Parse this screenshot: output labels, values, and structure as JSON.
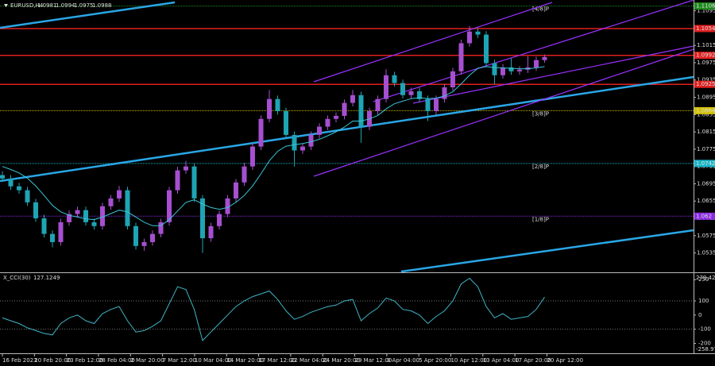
{
  "chart_data": [
    {
      "type": "candlestick",
      "title": "EURUSD,H4",
      "ohlc": [
        [
          1.0715,
          1.0724,
          1.0699,
          1.0707
        ],
        [
          1.0707,
          1.0715,
          1.0681,
          1.0689
        ],
        [
          1.0689,
          1.0697,
          1.0672,
          1.068
        ],
        [
          1.068,
          1.0688,
          1.0644,
          1.0652
        ],
        [
          1.0652,
          1.066,
          1.0607,
          1.0615
        ],
        [
          1.0615,
          1.0623,
          1.0571,
          1.0579
        ],
        [
          1.0579,
          1.0587,
          1.0548,
          1.056
        ],
        [
          1.056,
          1.0614,
          1.0552,
          1.0606
        ],
        [
          1.0606,
          1.0633,
          1.0598,
          1.0625
        ],
        [
          1.0625,
          1.0642,
          1.0617,
          1.0634
        ],
        [
          1.0634,
          1.0642,
          1.0598,
          1.0606
        ],
        [
          1.0606,
          1.0614,
          1.0589,
          1.0597
        ],
        [
          1.0597,
          1.0651,
          1.0589,
          1.0643
        ],
        [
          1.0643,
          1.0669,
          1.0635,
          1.0661
        ],
        [
          1.0661,
          1.069,
          1.0653,
          1.068
        ],
        [
          1.068,
          1.0688,
          1.0589,
          1.0597
        ],
        [
          1.0597,
          1.0605,
          1.0543,
          1.0551
        ],
        [
          1.0551,
          1.0568,
          1.054,
          1.056
        ],
        [
          1.056,
          1.0587,
          1.0552,
          1.0579
        ],
        [
          1.0579,
          1.0614,
          1.0571,
          1.0606
        ],
        [
          1.0606,
          1.0688,
          1.0598,
          1.068
        ],
        [
          1.068,
          1.0734,
          1.0672,
          1.0726
        ],
        [
          1.0726,
          1.0748,
          1.0718,
          1.0735
        ],
        [
          1.0735,
          1.0743,
          1.0653,
          1.0661
        ],
        [
          1.0661,
          1.0669,
          1.0535,
          1.0569
        ],
        [
          1.0569,
          1.0605,
          1.0561,
          1.0597
        ],
        [
          1.0597,
          1.0633,
          1.0589,
          1.0625
        ],
        [
          1.0625,
          1.0669,
          1.0617,
          1.0661
        ],
        [
          1.0661,
          1.0706,
          1.0653,
          1.0698
        ],
        [
          1.0698,
          1.0743,
          1.069,
          1.0735
        ],
        [
          1.0735,
          1.0789,
          1.0727,
          1.0781
        ],
        [
          1.0781,
          1.0853,
          1.0773,
          1.0845
        ],
        [
          1.0845,
          1.0912,
          1.0837,
          1.0891
        ],
        [
          1.0891,
          1.0899,
          1.0855,
          1.0863
        ],
        [
          1.0863,
          1.0871,
          1.08,
          1.0808
        ],
        [
          1.0808,
          1.0816,
          1.0735,
          1.0772
        ],
        [
          1.0772,
          1.0789,
          1.0764,
          1.0781
        ],
        [
          1.0781,
          1.0816,
          1.0773,
          1.0808
        ],
        [
          1.0808,
          1.0835,
          1.08,
          1.0827
        ],
        [
          1.0827,
          1.0853,
          1.0819,
          1.0845
        ],
        [
          1.0845,
          1.086,
          1.0837,
          1.0852
        ],
        [
          1.0852,
          1.089,
          1.0844,
          1.0882
        ],
        [
          1.0882,
          1.0912,
          1.0874,
          1.09
        ],
        [
          1.09,
          1.0908,
          1.079,
          1.0827
        ],
        [
          1.0827,
          1.0871,
          1.0819,
          1.0863
        ],
        [
          1.0863,
          1.0899,
          1.0855,
          1.0891
        ],
        [
          1.0891,
          1.096,
          1.0883,
          1.0946
        ],
        [
          1.0946,
          1.0954,
          1.092,
          1.0928
        ],
        [
          1.0928,
          1.0936,
          1.0892,
          1.09
        ],
        [
          1.09,
          1.0917,
          1.0892,
          1.0909
        ],
        [
          1.0909,
          1.0917,
          1.0883,
          1.0891
        ],
        [
          1.0891,
          1.0899,
          1.084,
          1.0863
        ],
        [
          1.0863,
          1.0899,
          1.0855,
          1.0891
        ],
        [
          1.0891,
          1.0926,
          1.0883,
          1.0918
        ],
        [
          1.0918,
          1.0963,
          1.091,
          1.0955
        ],
        [
          1.0955,
          1.1028,
          1.0947,
          1.102
        ],
        [
          1.102,
          1.106,
          1.1012,
          1.1047
        ],
        [
          1.1047,
          1.1055,
          1.1032,
          1.104
        ],
        [
          1.104,
          1.1048,
          1.0966,
          1.0974
        ],
        [
          1.0974,
          1.0982,
          1.0925,
          1.0946
        ],
        [
          1.0946,
          1.0972,
          1.0938,
          1.0964
        ],
        [
          1.0964,
          1.0985,
          1.0947,
          1.0955
        ],
        [
          1.0955,
          1.0967,
          1.0947,
          1.0959
        ],
        [
          1.0959,
          1.099,
          1.0951,
          1.0964
        ],
        [
          1.0964,
          1.0989,
          1.0956,
          1.0981
        ],
        [
          1.0981,
          1.0994,
          1.0975,
          1.0988
        ]
      ],
      "ma": [
        1.0735,
        1.0728,
        1.072,
        1.0708,
        1.069,
        1.0668,
        1.0645,
        1.063,
        1.0622,
        1.0618,
        1.0614,
        1.0612,
        1.0618,
        1.0626,
        1.0634,
        1.063,
        1.0618,
        1.0606,
        1.0598,
        1.0598,
        1.0612,
        1.0632,
        1.0652,
        1.0658,
        1.0648,
        1.064,
        1.0636,
        1.064,
        1.0652,
        1.0668,
        1.069,
        1.0718,
        1.0748,
        1.077,
        1.0782,
        1.0785,
        1.0788,
        1.0792,
        1.0798,
        1.0806,
        1.0815,
        1.0826,
        1.084,
        1.084,
        1.0845,
        1.0853,
        1.0868,
        1.088,
        1.0886,
        1.0892,
        1.0894,
        1.0892,
        1.0893,
        1.0898,
        1.0908,
        1.0926,
        1.0946,
        1.0962,
        1.0966,
        1.0964,
        1.0963,
        1.0962,
        1.0961,
        1.0961,
        1.0963,
        1.0966
      ],
      "colors": {
        "up": "#a64fd0",
        "down": "#1ea4b4",
        "ma": "#38c6d6"
      },
      "ylim": [
        1.0492,
        1.112
      ],
      "yticks": [
        1.1095,
        1.1055,
        1.1015,
        1.0975,
        1.0935,
        1.0895,
        1.0855,
        1.0815,
        1.0775,
        1.0735,
        1.0695,
        1.0655,
        1.0615,
        1.0575,
        1.0535
      ],
      "xticks": [
        {
          "value": 0,
          "label": "16 Feb 2023"
        },
        {
          "value": 3.84,
          "label": "20 Feb 20:00"
        },
        {
          "value": 7.68,
          "label": "23 Feb 12:00"
        },
        {
          "value": 11.52,
          "label": "28 Feb 04:00"
        },
        {
          "value": 15.36,
          "label": "2 Mar 20:00"
        },
        {
          "value": 19.2,
          "label": "7 Mar 12:00"
        },
        {
          "value": 23.04,
          "label": "10 Mar 04:00"
        },
        {
          "value": 26.88,
          "label": "14 Mar 20:00"
        },
        {
          "value": 30.72,
          "label": "17 Mar 12:00"
        },
        {
          "value": 34.56,
          "label": "22 Mar 04:00"
        },
        {
          "value": 38.4,
          "label": "24 Mar 20:00"
        },
        {
          "value": 42.24,
          "label": "29 Mar 12:00"
        },
        {
          "value": 46.08,
          "label": "3 Apr 04:00"
        },
        {
          "value": 49.92,
          "label": "5 Apr 20:00"
        },
        {
          "value": 53.76,
          "label": "10 Apr 12:00"
        },
        {
          "value": 57.6,
          "label": "13 Apr 04:00"
        },
        {
          "value": 61.44,
          "label": "17 Apr 20:00"
        },
        {
          "value": 65.28,
          "label": "20 Apr 12:00"
        }
      ],
      "levels": [
        {
          "price": 1.1106,
          "color": "#1f8a1f",
          "label": "[4/8]P"
        },
        {
          "price": 1.1054,
          "color": "#e02020"
        },
        {
          "price": 1.0992,
          "color": "#e02020"
        },
        {
          "price": 1.0925,
          "color": "#e02020"
        },
        {
          "price": 1.0864,
          "color": "#d2c000",
          "label": "[3/8]P"
        },
        {
          "price": 1.0742,
          "color": "#16b6c8",
          "label": "[2/8]P"
        },
        {
          "price": 1.062,
          "color": "#8a2be2",
          "label": "[1/8]P"
        }
      ]
    },
    {
      "type": "line",
      "title": "X_CCI(30)",
      "values": [
        -20,
        -40,
        -60,
        -90,
        -110,
        -130,
        -140,
        -60,
        -20,
        0,
        -40,
        -60,
        10,
        40,
        60,
        -40,
        -120,
        -110,
        -80,
        -40,
        80,
        200,
        180,
        40,
        -180,
        -120,
        -60,
        0,
        60,
        100,
        130,
        150,
        170,
        110,
        30,
        -30,
        -10,
        20,
        40,
        60,
        70,
        100,
        110,
        -40,
        10,
        50,
        120,
        100,
        40,
        30,
        0,
        -60,
        -10,
        30,
        100,
        220,
        260,
        200,
        60,
        -20,
        10,
        -30,
        -20,
        -10,
        40,
        127.1249
      ],
      "color": "#3fb4c4",
      "ylim": [
        -258.9797,
        279.4203
      ],
      "yticks": [
        250,
        100,
        0,
        -100,
        -200
      ],
      "levels": [
        100,
        -100
      ]
    }
  ]
}
